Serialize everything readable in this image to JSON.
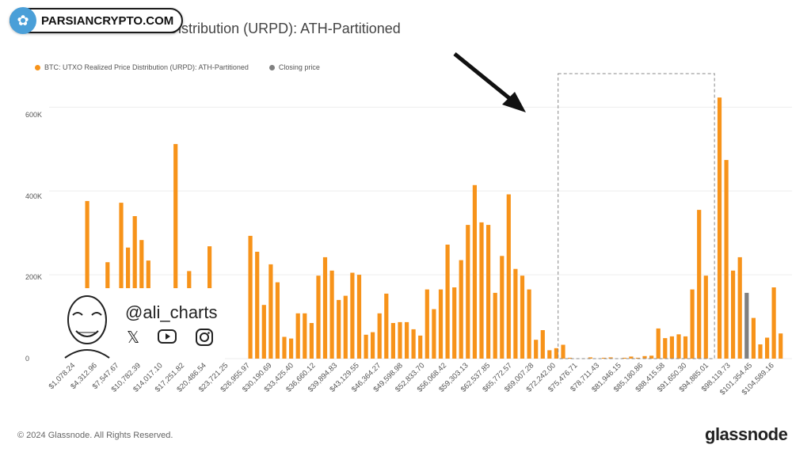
{
  "badge": {
    "site": "PARSIANCRYPTO.COM"
  },
  "page": {
    "footer": "© 2024 Glassnode. All Rights Reserved.",
    "brand": "glassnode"
  },
  "watermark": {
    "handle": "@ali_charts"
  },
  "colors": {
    "series": "#f7931a",
    "closing": "#808080",
    "box": "#888888",
    "arrow": "#111111"
  },
  "chart_data": {
    "type": "bar",
    "title": "UTXO Realized Price Distribution (URPD): ATH-Partitioned",
    "legend": [
      {
        "name": "BTC: UTXO Realized Price Distribution (URPD): ATH-Partitioned",
        "color": "#f7931a"
      },
      {
        "name": "Closing price",
        "color": "#808080"
      }
    ],
    "y_ticks": [
      "0",
      "200K",
      "400K",
      "600K"
    ],
    "ylim": [
      0,
      680000
    ],
    "x_tick_labels": [
      "$1,078.24",
      "$4,312.96",
      "$7,547.67",
      "$10,782.39",
      "$14,017.10",
      "$17,251.82",
      "$20,486.54",
      "$23,721.25",
      "$26,955.97",
      "$30,190.69",
      "$33,425.40",
      "$36,660.12",
      "$39,894.83",
      "$43,129.55",
      "$46,364.27",
      "$49,598.98",
      "$52,833.70",
      "$56,068.42",
      "$59,303.13",
      "$62,537.85",
      "$65,772.57",
      "$69,007.28",
      "$72,242.00",
      "$75,476.71",
      "$78,711.43",
      "$81,946.15",
      "$85,180.86",
      "$88,415.58",
      "$91,650.30",
      "$94,885.01",
      "$98,119.73",
      "$101,354.45",
      "$104,589.16"
    ],
    "closing_price_index": 100,
    "highlight_range_index": [
      73,
      95
    ],
    "values": [
      0,
      0,
      19000,
      376000,
      0,
      0,
      230000,
      0,
      372000,
      265000,
      340000,
      283000,
      234000,
      0,
      0,
      0,
      512000,
      0,
      209000,
      0,
      0,
      268000,
      0,
      0,
      0,
      0,
      0,
      293000,
      255000,
      128000,
      225000,
      182000,
      52000,
      48000,
      108000,
      108000,
      85000,
      198000,
      242000,
      210000,
      140000,
      150000,
      205000,
      200000,
      57000,
      63000,
      108000,
      155000,
      85000,
      87000,
      87000,
      70000,
      55000,
      165000,
      118000,
      165000,
      272000,
      170000,
      235000,
      319000,
      414000,
      325000,
      319000,
      157000,
      245000,
      392000,
      214000,
      198000,
      165000,
      45000,
      68000,
      20000,
      25000,
      33000,
      2000,
      0,
      0,
      3000,
      0,
      2000,
      3000,
      0,
      2000,
      5000,
      2000,
      6000,
      7000,
      72000,
      49000,
      53000,
      58000,
      53000,
      165000,
      355000,
      198000,
      0,
      623000,
      474000,
      210000,
      242000,
      157000,
      97000,
      34000,
      50000,
      170000,
      60000
    ]
  }
}
